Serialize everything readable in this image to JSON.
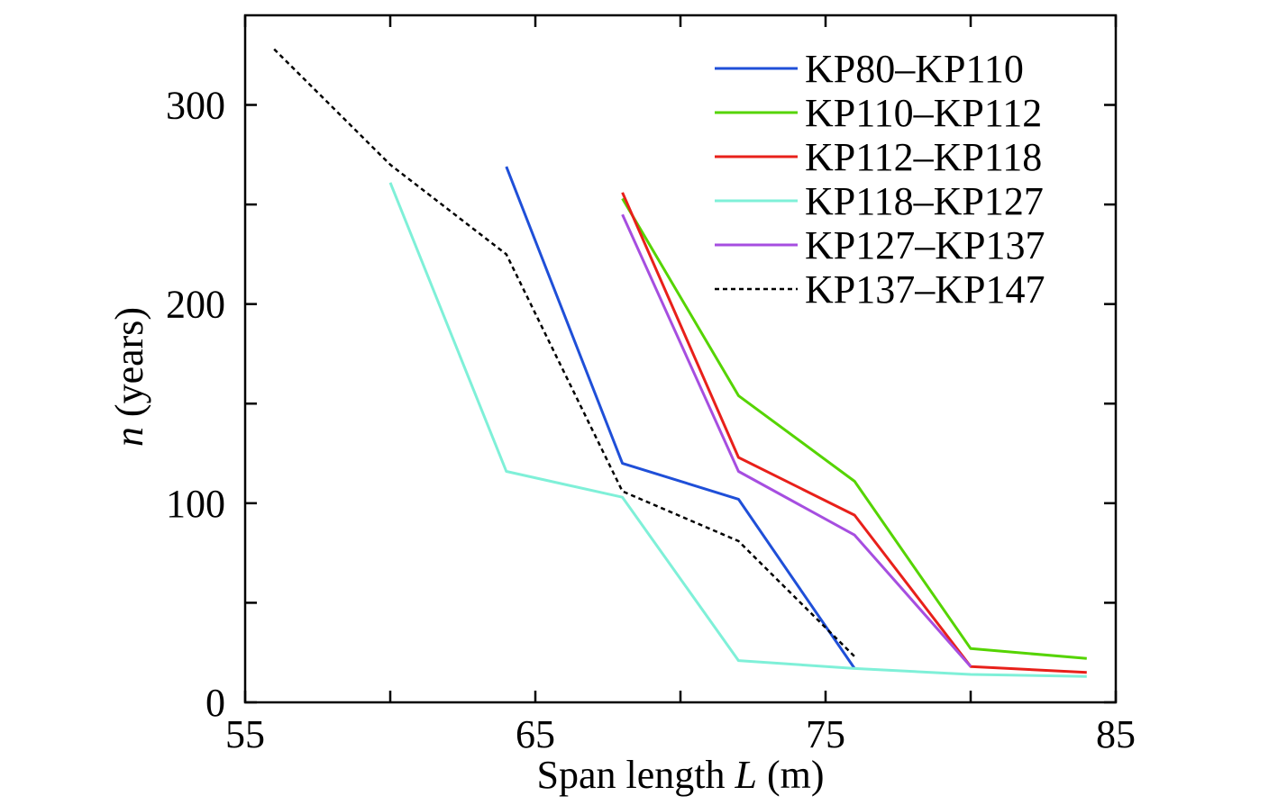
{
  "chart_data": {
    "type": "line",
    "title": "",
    "xlabel": "Span length ",
    "xlabel_var": "L",
    "xlabel_unit": " (m)",
    "ylabel_var": "n",
    "ylabel": " (years)",
    "xlim": [
      55,
      85
    ],
    "ylim": [
      0,
      345
    ],
    "xticks": [
      55,
      65,
      75,
      85
    ],
    "yticks": [
      0,
      100,
      200,
      300
    ],
    "grid": false,
    "legend_position": "top-right",
    "series": [
      {
        "name": "KP80–KP110",
        "color": "#1f4fd8",
        "dashed": false,
        "x": [
          64,
          68,
          72,
          76
        ],
        "y": [
          269,
          120,
          102,
          17
        ]
      },
      {
        "name": "KP110–KP112",
        "color": "#55d400",
        "dashed": false,
        "x": [
          68,
          72,
          76,
          80,
          84
        ],
        "y": [
          253,
          154,
          111,
          27,
          22
        ]
      },
      {
        "name": "KP112–KP118",
        "color": "#e8201a",
        "dashed": false,
        "x": [
          68,
          72,
          76,
          80,
          84
        ],
        "y": [
          256,
          123,
          94,
          18,
          15
        ]
      },
      {
        "name": "KP118–KP127",
        "color": "#7ff0d8",
        "dashed": false,
        "x": [
          60,
          64,
          68,
          72,
          76,
          80,
          84
        ],
        "y": [
          261,
          116,
          103,
          21,
          17,
          14,
          13
        ]
      },
      {
        "name": "KP127–KP137",
        "color": "#a64ee0",
        "dashed": false,
        "x": [
          68,
          72,
          76,
          80
        ],
        "y": [
          245,
          116,
          84,
          18
        ]
      },
      {
        "name": "KP137–KP147",
        "color": "#000000",
        "dashed": true,
        "x": [
          56,
          60,
          64,
          68,
          72,
          76
        ],
        "y": [
          328,
          270,
          225,
          106,
          81,
          23
        ]
      }
    ]
  }
}
